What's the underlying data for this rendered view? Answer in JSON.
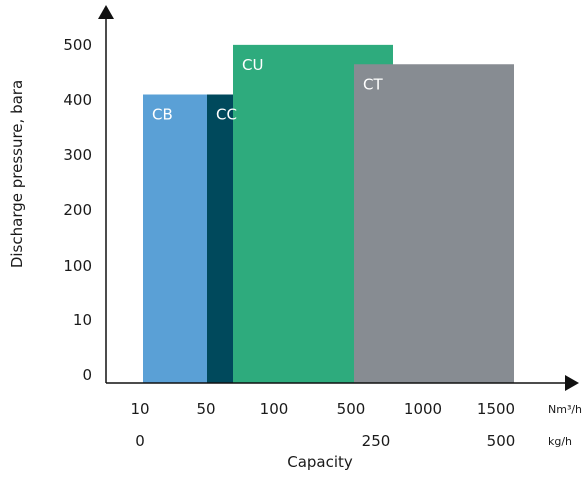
{
  "chart_data": {
    "type": "bar",
    "title": "",
    "xlabel": "Capacity",
    "ylabel": "Discharge pressure, bara",
    "y_ticks": [
      "0",
      "10",
      "100",
      "200",
      "300",
      "400",
      "500"
    ],
    "x_ticks_nm3h": [
      "10",
      "50",
      "100",
      "500",
      "1000",
      "1500"
    ],
    "x_ticks_kgh": [
      {
        "label": "0",
        "at": "10"
      },
      {
        "label": "250",
        "at": "500"
      },
      {
        "label": "500",
        "at": "1500"
      }
    ],
    "x_unit_nm3h": "Nm³/h",
    "x_unit_kgh": "kg/h",
    "regions": [
      {
        "name": "CB",
        "x_from": "10",
        "x_to": "50",
        "y_max": 410,
        "color": "#5aa0d6"
      },
      {
        "name": "CC",
        "x_from": "50",
        "x_to": "100",
        "y_max": 410,
        "color": "#00495c"
      },
      {
        "name": "CU",
        "x_from": "~75",
        "x_to": "500",
        "y_max": 505,
        "color": "#2eab7d"
      },
      {
        "name": "CT",
        "x_from": "~250",
        "x_to": "1500",
        "y_max": 465,
        "color": "#878c92"
      }
    ],
    "grid": false,
    "legend": "none"
  }
}
